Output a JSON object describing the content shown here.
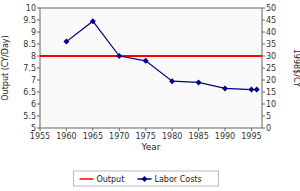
{
  "chart_data": {
    "type": "line",
    "xlabel": "Year",
    "ylabel": "Output (CY/Day)",
    "y2label": "1998$/CY",
    "xlim": [
      1955,
      1997
    ],
    "xticks": [
      1955,
      1960,
      1965,
      1970,
      1975,
      1980,
      1985,
      1990,
      1995
    ],
    "ylim": [
      5,
      10
    ],
    "yticks": [
      5,
      5.5,
      6,
      6.5,
      7,
      7.5,
      8,
      8.5,
      9,
      9.5,
      10
    ],
    "y2lim": [
      0,
      50
    ],
    "y2ticks": [
      0,
      5,
      10,
      15,
      20,
      25,
      30,
      35,
      40,
      45,
      50
    ],
    "grid": false,
    "legend": "bottom",
    "series": [
      {
        "name": "Output",
        "color": "#ff0000",
        "marker": "none",
        "x": [
          1955,
          1997
        ],
        "values": [
          8.0,
          8.0
        ]
      },
      {
        "name": "Labor Costs",
        "color": "#00008b",
        "marker": "diamond",
        "x": [
          1960,
          1965,
          1970,
          1975,
          1980,
          1985,
          1990,
          1995,
          1996
        ],
        "values": [
          8.6,
          9.45,
          8.0,
          7.8,
          6.95,
          6.9,
          6.65,
          6.6,
          6.6
        ]
      }
    ]
  }
}
